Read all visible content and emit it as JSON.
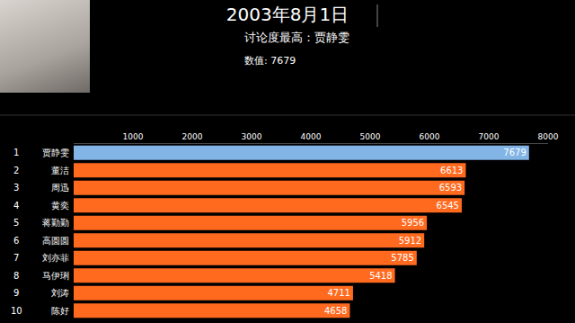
{
  "chart_data": {
    "type": "bar",
    "orientation": "horizontal",
    "title": "2003年8月1日",
    "subtitle": "讨论度最高：贾静雯",
    "annotations": [
      "数值: 7679"
    ],
    "ranks": [
      1,
      2,
      3,
      4,
      5,
      6,
      7,
      8,
      9,
      10
    ],
    "categories": [
      "贾静雯",
      "董洁",
      "周迅",
      "黄奕",
      "蒋勤勤",
      "高圆圆",
      "刘亦菲",
      "马伊琍",
      "刘涛",
      "陈好"
    ],
    "values": [
      7679,
      6613,
      6593,
      6545,
      5956,
      5912,
      5785,
      5418,
      4711,
      4658
    ],
    "colors": [
      "#82b4e6",
      "#ff6a1f",
      "#ff6a1f",
      "#ff6a1f",
      "#ff6a1f",
      "#ff6a1f",
      "#ff6a1f",
      "#ff6a1f",
      "#ff6a1f",
      "#ff6a1f"
    ],
    "xlim": [
      0,
      8000
    ],
    "xticks": [
      1000,
      2000,
      3000,
      4000,
      5000,
      6000,
      7000,
      8000
    ],
    "grid": false,
    "data_labels": true
  }
}
